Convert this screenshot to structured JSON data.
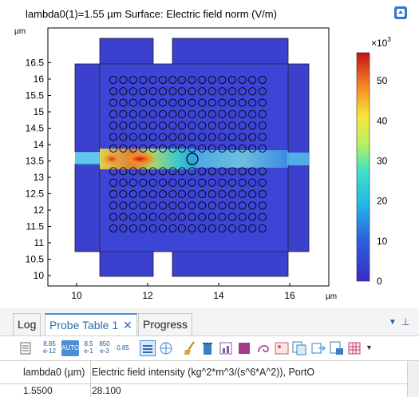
{
  "plot": {
    "title": "lambda0(1)=1.55 µm  Surface: Electric field norm (V/m)",
    "x_unit": "µm",
    "y_unit": "µm",
    "x_ticks": [
      "10",
      "12",
      "14",
      "16"
    ],
    "y_ticks": [
      "16.5",
      "16",
      "15.5",
      "15",
      "14.5",
      "14",
      "13.5",
      "13",
      "12.5",
      "12",
      "11.5",
      "11",
      "10.5",
      "10"
    ],
    "colorbar_multiplier": "×10",
    "colorbar_exponent": "3",
    "colorbar_ticks": [
      "50",
      "40",
      "30",
      "20",
      "10",
      "0"
    ]
  },
  "chart_data": {
    "type": "heatmap",
    "title": "lambda0(1)=1.55 µm  Surface: Electric field norm (V/m)",
    "xlabel": "µm",
    "ylabel": "µm",
    "xlim": [
      9.2,
      17.0
    ],
    "ylim": [
      9.8,
      16.9
    ],
    "colorbar_range": [
      0,
      57000
    ],
    "colorbar_scale": "×10^3",
    "grid": false
  },
  "tabs": [
    {
      "label": "Log"
    },
    {
      "label": "Probe Table 1"
    },
    {
      "label": "Progress"
    }
  ],
  "toolbar": {
    "fmt1_top": "8.85",
    "fmt1_bot": "e-12",
    "auto": "AUTO",
    "fmt2_top": "8.5",
    "fmt2_bot": "e-1",
    "fmt3_top": "850",
    "fmt3_bot": "e-3",
    "fmt4": "0.85"
  },
  "table": {
    "headers": [
      "lambda0 (µm)",
      "Electric field intensity (kg^2*m^3/(s^6*A^2)), PortO"
    ],
    "rows": [
      [
        "1.5500",
        "28.100"
      ]
    ]
  },
  "colors": {
    "accent": "#2a6ab8",
    "field_low": "#3a3ccf",
    "field_high": "#c8101a"
  }
}
